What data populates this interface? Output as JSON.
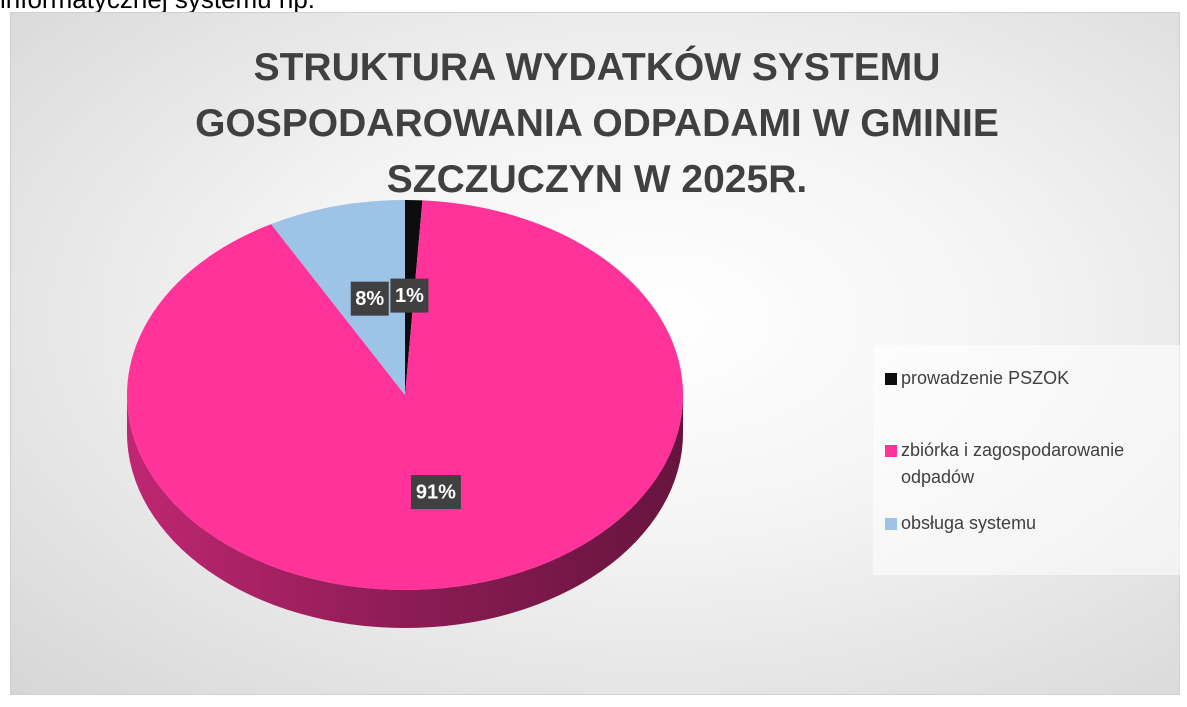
{
  "page_text": "informatycznej systemu np.",
  "chart_data": {
    "type": "pie",
    "title": "STRUKTURA WYDATKÓW SYSTEMU GOSPODAROWANIA ODPADAMI W GMINIE SZCZUCZYN W 2025R.",
    "categories": [
      "prowadzenie PSZOK",
      "zbiórka i zagospodarowanie odpadów",
      "obsługa systemu"
    ],
    "values": [
      1,
      91,
      8
    ],
    "value_labels": [
      "1%",
      "91%",
      "8%"
    ],
    "colors": [
      "#0d0d0d",
      "#ff3399",
      "#9dc3e6"
    ],
    "legend": "right"
  }
}
